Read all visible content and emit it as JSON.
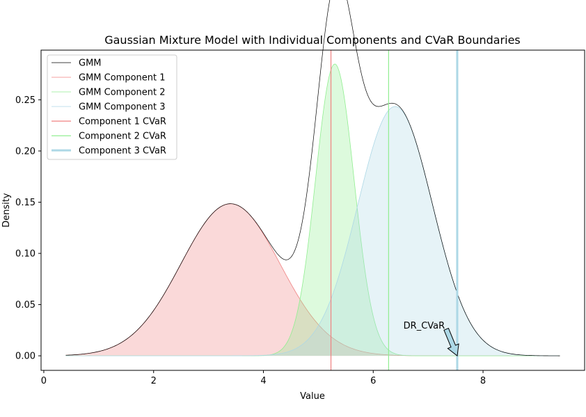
{
  "chart_data": {
    "type": "line",
    "title": "Gaussian Mixture Model with Individual Components and CVaR Boundaries",
    "xlabel": "Value",
    "ylabel": "Density",
    "xlim": [
      -0.05,
      9.85
    ],
    "ylim": [
      -0.0142,
      0.2985
    ],
    "x_range": [
      0.4,
      9.4
    ],
    "xticks": [
      0,
      2,
      4,
      6,
      8
    ],
    "yticks": [
      0.0,
      0.05,
      0.1,
      0.15,
      0.2,
      0.25
    ],
    "xtick_labels": [
      "0",
      "2",
      "4",
      "6",
      "8"
    ],
    "ytick_labels": [
      "0.00",
      "0.05",
      "0.10",
      "0.15",
      "0.20",
      "0.25"
    ],
    "grid": false,
    "legend_position": "top-left",
    "components": [
      {
        "name": "GMM Component 1",
        "weight": 0.335,
        "mean": 3.4,
        "std": 0.9,
        "color": "#f08080",
        "fill": "#f08080"
      },
      {
        "name": "GMM Component 2",
        "weight": 0.25,
        "mean": 5.3,
        "std": 0.35,
        "color": "#90ee90",
        "fill": "#90ee90"
      },
      {
        "name": "GMM Component 3",
        "weight": 0.415,
        "mean": 6.4,
        "std": 0.68,
        "color": "#add8e6",
        "fill": "#add8e6"
      }
    ],
    "gmm": {
      "name": "GMM",
      "color": "#000000"
    },
    "cvar_lines": [
      {
        "name": "Component 1 CVaR",
        "x": 5.23,
        "color": "#f08080"
      },
      {
        "name": "Component 2 CVaR",
        "x": 6.28,
        "color": "#90ee90"
      },
      {
        "name": "Component 3 CVaR",
        "x": 7.53,
        "color": "#add8e6"
      }
    ],
    "annotation": {
      "text": "DR_CVaR",
      "text_x": 6.55,
      "text_y": 0.03,
      "arrow_x": 7.53,
      "arrow_y": 0.0,
      "arrow_from_x": 7.33,
      "arrow_from_y": 0.026
    }
  }
}
